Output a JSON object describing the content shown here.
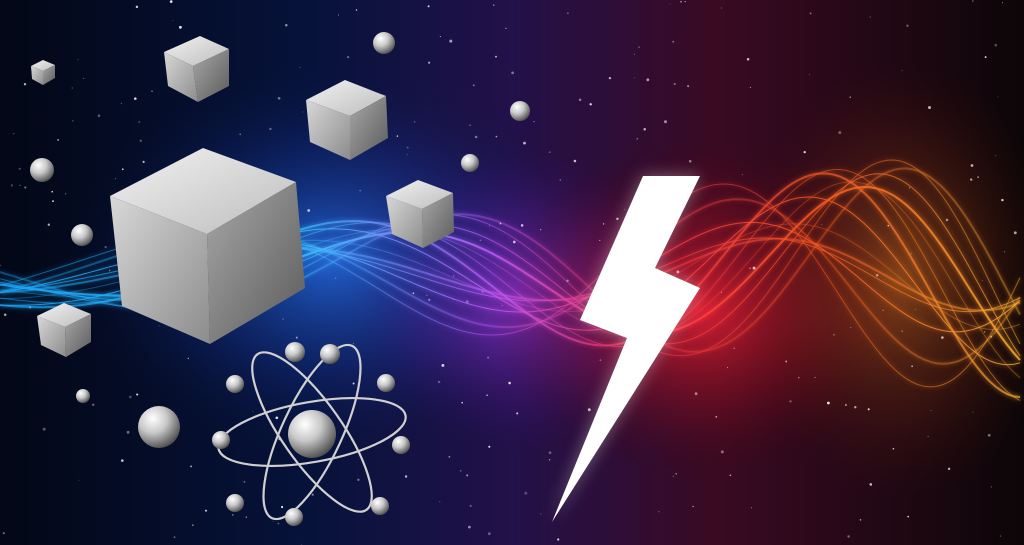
{
  "scene": {
    "description_colors": {
      "background": "#05060f",
      "blue_glow": "#1e6bff",
      "violet_glow": "#8a2be2",
      "red_glow": "#ff2a3a",
      "orange_glow": "#ff9a1f",
      "cube": "#cfcfcf",
      "bolt": "#ffffff"
    },
    "icons": [
      "cube-icon",
      "sphere-icon",
      "atom-icon",
      "lightning-bolt-icon",
      "energy-wave-icon"
    ]
  }
}
